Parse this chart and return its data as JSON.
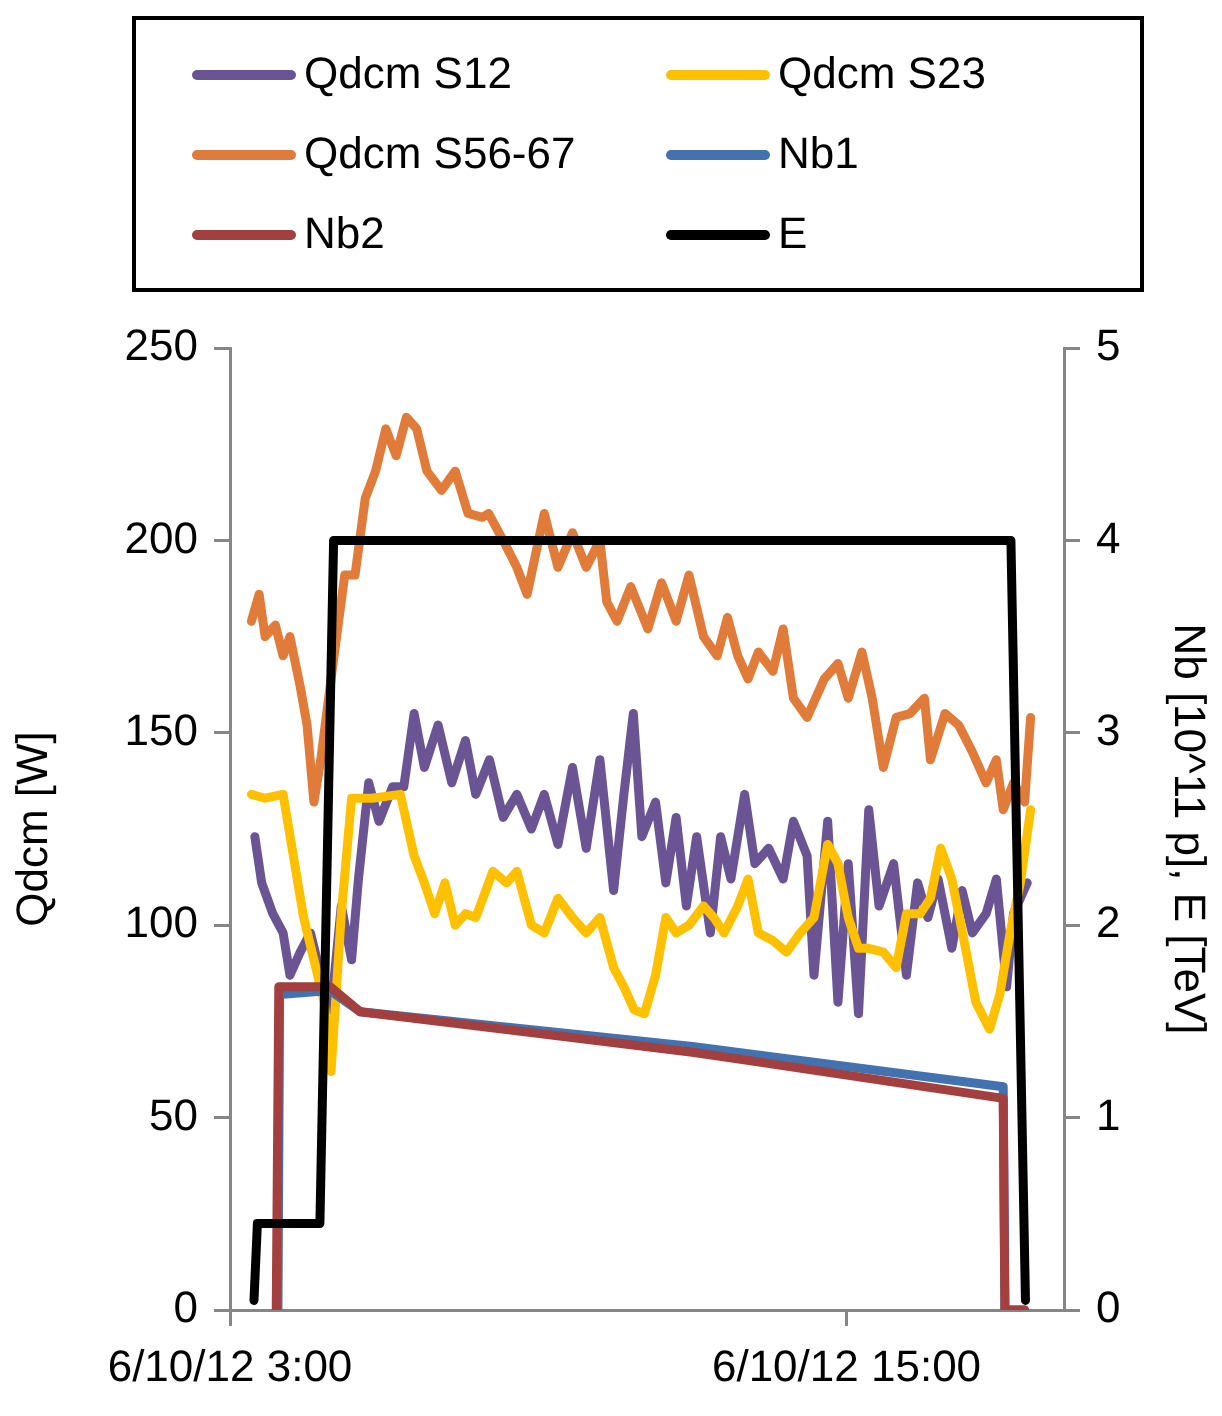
{
  "chart_data": {
    "type": "line",
    "ylabel": "Qdcm [W]",
    "y2label": "Nb [10^11 p], E [TeV]",
    "legend": "top",
    "grid": false,
    "marker": "none",
    "line_style": "solid",
    "xlim": [
      "--06-10T03:00",
      "--06-10T19:14"
    ],
    "xticks": [
      {
        "value": "--06-10T03:00",
        "label": "6/10/12 3:00"
      },
      {
        "value": "--06-10T15:00",
        "label": "6/10/12 15:00"
      }
    ],
    "ylim": [
      0,
      250
    ],
    "yticks": [
      0,
      50,
      100,
      150,
      200,
      250
    ],
    "y2lim": [
      0,
      5
    ],
    "y2ticks": [
      0,
      1,
      2,
      3,
      4,
      5
    ],
    "series": [
      {
        "name": "Qdcm S12",
        "color": "#6b5494",
        "x": [
          "--06-10T03:29",
          "--06-10T03:37",
          "--06-10T03:50",
          "--06-10T04:02",
          "--06-10T04:10",
          "--06-10T04:22",
          "--06-10T04:34",
          "--06-10T04:46",
          "--06-10T04:58",
          "--06-10T05:10",
          "--06-10T05:22",
          "--06-10T05:30",
          "--06-10T05:42",
          "--06-10T05:54",
          "--06-10T06:10",
          "--06-10T06:23",
          "--06-10T06:35",
          "--06-10T06:47",
          "--06-10T07:03",
          "--06-10T07:19",
          "--06-10T07:35",
          "--06-10T07:47",
          "--06-10T08:03",
          "--06-10T08:19",
          "--06-10T08:35",
          "--06-10T08:52",
          "--06-10T09:07",
          "--06-10T09:23",
          "--06-10T09:40",
          "--06-10T09:56",
          "--06-10T10:12",
          "--06-10T10:28",
          "--06-10T10:40",
          "--06-10T10:51",
          "--06-10T11:01",
          "--06-10T11:17",
          "--06-10T11:29",
          "--06-10T11:41",
          "--06-10T11:53",
          "--06-10T12:05",
          "--06-10T12:21",
          "--06-10T12:33",
          "--06-10T12:45",
          "--06-10T13:01",
          "--06-10T13:13",
          "--06-10T13:29",
          "--06-10T13:46",
          "--06-10T13:58",
          "--06-10T14:14",
          "--06-10T14:22",
          "--06-10T14:38",
          "--06-10T14:50",
          "--06-10T15:02",
          "--06-10T15:14",
          "--06-10T15:26",
          "--06-10T15:38",
          "--06-10T15:55",
          "--06-10T16:10",
          "--06-10T16:23",
          "--06-10T16:35",
          "--06-10T16:47",
          "--06-10T17:03",
          "--06-10T17:15",
          "--06-10T17:27",
          "--06-10T17:43",
          "--06-10T17:55",
          "--06-10T18:07",
          "--06-10T18:15",
          "--06-10T18:31"
        ],
        "values": [
          123,
          111,
          103,
          98,
          87,
          93,
          98,
          87,
          78,
          105,
          91,
          112,
          137,
          127,
          136,
          136,
          155,
          141,
          152,
          137,
          148,
          134,
          143,
          128,
          134,
          125,
          134,
          121,
          141,
          120,
          143,
          109,
          134,
          155,
          123,
          132,
          111,
          128,
          105,
          123,
          98,
          123,
          112,
          134,
          116,
          120,
          112,
          127,
          118,
          87,
          127,
          80,
          116,
          77,
          130,
          105,
          116,
          87,
          111,
          102,
          112,
          94,
          109,
          98,
          103,
          112,
          84,
          103,
          111
        ]
      },
      {
        "name": "Qdcm S23",
        "color": "#ffc000",
        "x": [
          "--06-10T03:25",
          "--06-10T03:41",
          "--06-10T04:02",
          "--06-10T04:14",
          "--06-10T04:26",
          "--06-10T04:38",
          "--06-10T04:50",
          "--06-10T04:58",
          "--06-10T05:10",
          "--06-10T05:22",
          "--06-10T05:46",
          "--06-10T06:19",
          "--06-10T06:35",
          "--06-10T06:47",
          "--06-10T06:59",
          "--06-10T07:11",
          "--06-10T07:23",
          "--06-10T07:35",
          "--06-10T07:47",
          "--06-10T08:07",
          "--06-10T08:23",
          "--06-10T08:35",
          "--06-10T08:52",
          "--06-10T09:07",
          "--06-10T09:23",
          "--06-10T09:40",
          "--06-10T09:56",
          "--06-10T10:12",
          "--06-10T10:28",
          "--06-10T10:40",
          "--06-10T10:52",
          "--06-10T11:04",
          "--06-10T11:17",
          "--06-10T11:29",
          "--06-10T11:41",
          "--06-10T11:56",
          "--06-10T12:13",
          "--06-10T12:25",
          "--06-10T12:37",
          "--06-10T12:53",
          "--06-10T13:05",
          "--06-10T13:17",
          "--06-10T13:34",
          "--06-10T13:50",
          "--06-10T14:06",
          "--06-10T14:22",
          "--06-10T14:38",
          "--06-10T14:50",
          "--06-10T15:02",
          "--06-10T15:14",
          "--06-10T15:26",
          "--06-10T15:43",
          "--06-10T15:58",
          "--06-10T16:10",
          "--06-10T16:26",
          "--06-10T16:38",
          "--06-10T16:50",
          "--06-10T17:03",
          "--06-10T17:19",
          "--06-10T17:31",
          "--06-10T17:47",
          "--06-10T17:59",
          "--06-10T18:11",
          "--06-10T18:23",
          "--06-10T18:35"
        ],
        "values": [
          134,
          133,
          134,
          118,
          102,
          91,
          80,
          62,
          103,
          133,
          133,
          134,
          118,
          111,
          103,
          111,
          100,
          103,
          102,
          114,
          111,
          114,
          100,
          98,
          107,
          102,
          98,
          102,
          89,
          84,
          78,
          77,
          87,
          102,
          98,
          100,
          105,
          102,
          98,
          105,
          112,
          98,
          96,
          93,
          98,
          102,
          121,
          116,
          102,
          94,
          94,
          93,
          89,
          103,
          103,
          107,
          120,
          112,
          94,
          80,
          73,
          82,
          98,
          111,
          130
        ]
      },
      {
        "name": "Qdcm S56-67",
        "color": "#e07b39",
        "x": [
          "--06-10T03:25",
          "--06-10T03:34",
          "--06-10T03:41",
          "--06-10T03:53",
          "--06-10T04:02",
          "--06-10T04:10",
          "--06-10T04:22",
          "--06-10T04:30",
          "--06-10T04:38",
          "--06-10T04:46",
          "--06-10T04:58",
          "--06-10T05:14",
          "--06-10T05:26",
          "--06-10T05:38",
          "--06-10T05:50",
          "--06-10T06:02",
          "--06-10T06:14",
          "--06-10T06:26",
          "--06-10T06:38",
          "--06-10T06:50",
          "--06-10T07:07",
          "--06-10T07:23",
          "--06-10T07:38",
          "--06-10T07:55",
          "--06-10T08:02",
          "--06-10T08:19",
          "--06-10T08:35",
          "--06-10T08:47",
          "--06-10T09:07",
          "--06-10T09:23",
          "--06-10T09:40",
          "--06-10T09:56",
          "--06-10T10:12",
          "--06-10T10:20",
          "--06-10T10:32",
          "--06-10T10:48",
          "--06-10T11:08",
          "--06-10T11:24",
          "--06-10T11:41",
          "--06-10T11:56",
          "--06-10T12:13",
          "--06-10T12:29",
          "--06-10T12:41",
          "--06-10T12:53",
          "--06-10T13:05",
          "--06-10T13:17",
          "--06-10T13:34",
          "--06-10T13:46",
          "--06-10T13:58",
          "--06-10T14:14",
          "--06-10T14:34",
          "--06-10T14:50",
          "--06-10T15:02",
          "--06-10T15:18",
          "--06-10T15:30",
          "--06-10T15:43",
          "--06-10T15:58",
          "--06-10T16:14",
          "--06-10T16:31",
          "--06-10T16:38",
          "--06-10T16:55",
          "--06-10T17:11",
          "--06-10T17:27",
          "--06-10T17:43",
          "--06-10T17:55",
          "--06-10T18:03",
          "--06-10T18:15",
          "--06-10T18:28",
          "--06-10T18:35"
        ],
        "values": [
          179,
          186,
          175,
          178,
          170,
          175,
          162,
          152,
          132,
          143,
          164,
          191,
          191,
          211,
          218,
          229,
          222,
          232,
          229,
          218,
          213,
          218,
          207,
          206,
          207,
          200,
          193,
          186,
          207,
          193,
          202,
          193,
          200,
          184,
          179,
          188,
          177,
          189,
          179,
          191,
          175,
          170,
          180,
          170,
          164,
          171,
          166,
          177,
          159,
          154,
          164,
          168,
          159,
          171,
          159,
          141,
          154,
          155,
          159,
          143,
          155,
          152,
          145,
          137,
          143,
          130,
          137,
          132,
          154
        ]
      },
      {
        "name": "Nb1",
        "color": "#4372b0",
        "axis": "y2",
        "x": [
          "--06-10T03:56",
          "--06-10T03:58",
          "--06-10T04:57",
          "--06-10T05:32",
          "--06-10T12:00",
          "--06-10T18:03",
          "--06-10T18:05",
          "--06-10T18:28"
        ],
        "values": [
          0,
          1.64,
          1.66,
          1.55,
          1.37,
          1.16,
          0,
          0
        ]
      },
      {
        "name": "Nb2",
        "color": "#a33f3f",
        "axis": "y2",
        "x": [
          "--06-10T03:54",
          "--06-10T03:57",
          "--06-10T04:57",
          "--06-10T05:32",
          "--06-10T12:00",
          "--06-10T18:03",
          "--06-10T18:05",
          "--06-10T18:28"
        ],
        "values": [
          0,
          1.68,
          1.68,
          1.55,
          1.34,
          1.1,
          0,
          0
        ]
      },
      {
        "name": "E",
        "color": "#000000",
        "axis": "y2",
        "x": [
          "--06-10T03:28",
          "--06-10T03:32",
          "--06-10T04:45",
          "--06-10T05:01",
          "--06-10T18:12",
          "--06-10T18:29"
        ],
        "values": [
          0.05,
          0.45,
          0.45,
          4,
          4,
          0.05
        ]
      }
    ]
  }
}
